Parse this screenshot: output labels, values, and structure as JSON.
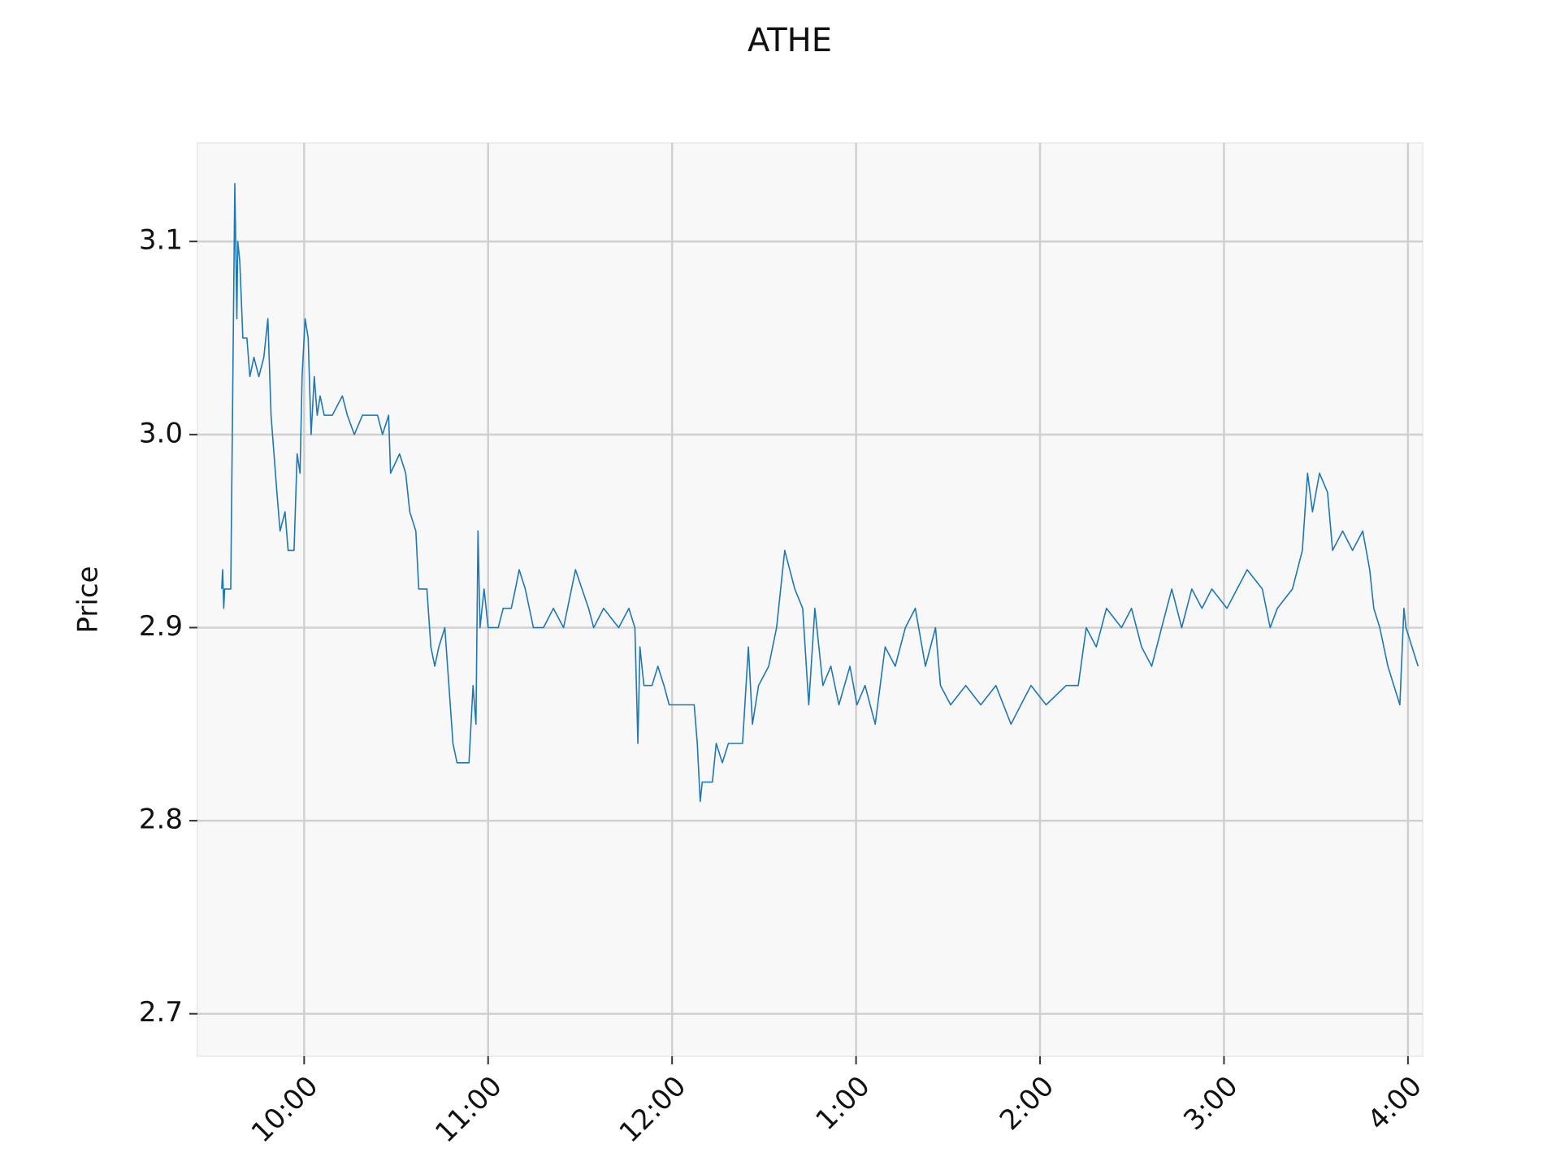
{
  "chart_data": {
    "type": "line",
    "title": "ATHE",
    "y_label": "Price",
    "color": "#1f77b4",
    "grid": true,
    "x": [
      9.552,
      9.557,
      9.563,
      9.568,
      9.601,
      9.623,
      9.634,
      9.639,
      9.65,
      9.667,
      9.689,
      9.705,
      9.727,
      9.754,
      9.781,
      9.803,
      9.82,
      9.836,
      9.852,
      9.869,
      9.896,
      9.913,
      9.945,
      9.962,
      9.978,
      9.989,
      10.005,
      10.022,
      10.038,
      10.055,
      10.071,
      10.087,
      10.109,
      10.153,
      10.208,
      10.235,
      10.273,
      10.317,
      10.399,
      10.426,
      10.459,
      10.47,
      10.519,
      10.552,
      10.574,
      10.607,
      10.623,
      10.667,
      10.689,
      10.71,
      10.732,
      10.765,
      10.787,
      10.809,
      10.831,
      10.896,
      10.918,
      10.934,
      10.945,
      10.956,
      10.978,
      11.0,
      11.055,
      11.082,
      11.126,
      11.148,
      11.169,
      11.202,
      11.246,
      11.301,
      11.355,
      11.41,
      11.475,
      11.546,
      11.574,
      11.628,
      11.71,
      11.765,
      11.798,
      11.814,
      11.825,
      11.847,
      11.891,
      11.923,
      11.956,
      11.984,
      12.12,
      12.137,
      12.153,
      12.164,
      12.219,
      12.24,
      12.273,
      12.306,
      12.35,
      12.383,
      12.415,
      12.437,
      12.47,
      12.525,
      12.568,
      12.612,
      12.667,
      12.71,
      12.743,
      12.776,
      12.82,
      12.863,
      12.907,
      12.967,
      13.005,
      13.049,
      13.104,
      13.158,
      13.213,
      13.268,
      13.322,
      13.377,
      13.432,
      13.459,
      13.514,
      13.596,
      13.678,
      13.76,
      13.842,
      13.896,
      13.951,
      14.033,
      14.142,
      14.208,
      14.251,
      14.306,
      14.361,
      14.443,
      14.497,
      14.552,
      14.607,
      14.661,
      14.716,
      14.77,
      14.825,
      14.88,
      14.934,
      15.016,
      15.126,
      15.208,
      15.251,
      15.29,
      15.372,
      15.426,
      15.454,
      15.481,
      15.519,
      15.563,
      15.59,
      15.645,
      15.699,
      15.754,
      15.792,
      15.814,
      15.847,
      15.891,
      15.923,
      15.956,
      15.978,
      15.989,
      16.055
    ],
    "values": [
      2.92,
      2.93,
      2.91,
      2.92,
      2.92,
      3.13,
      3.06,
      3.1,
      3.09,
      3.05,
      3.05,
      3.03,
      3.04,
      3.03,
      3.04,
      3.06,
      3.01,
      2.99,
      2.97,
      2.95,
      2.96,
      2.94,
      2.94,
      2.99,
      2.98,
      3.03,
      3.06,
      3.05,
      3.0,
      3.03,
      3.01,
      3.02,
      3.01,
      3.01,
      3.02,
      3.01,
      3.0,
      3.01,
      3.01,
      3.0,
      3.01,
      2.98,
      2.99,
      2.98,
      2.96,
      2.95,
      2.92,
      2.92,
      2.89,
      2.88,
      2.89,
      2.9,
      2.87,
      2.84,
      2.83,
      2.83,
      2.87,
      2.85,
      2.95,
      2.9,
      2.92,
      2.9,
      2.9,
      2.91,
      2.91,
      2.92,
      2.93,
      2.92,
      2.9,
      2.9,
      2.91,
      2.9,
      2.93,
      2.91,
      2.9,
      2.91,
      2.9,
      2.91,
      2.9,
      2.84,
      2.89,
      2.87,
      2.87,
      2.88,
      2.87,
      2.86,
      2.86,
      2.84,
      2.81,
      2.82,
      2.82,
      2.84,
      2.83,
      2.84,
      2.84,
      2.84,
      2.89,
      2.85,
      2.87,
      2.88,
      2.9,
      2.94,
      2.92,
      2.91,
      2.86,
      2.91,
      2.87,
      2.88,
      2.86,
      2.88,
      2.86,
      2.87,
      2.85,
      2.89,
      2.88,
      2.9,
      2.91,
      2.88,
      2.9,
      2.87,
      2.86,
      2.87,
      2.86,
      2.87,
      2.85,
      2.86,
      2.87,
      2.86,
      2.87,
      2.87,
      2.9,
      2.89,
      2.91,
      2.9,
      2.91,
      2.89,
      2.88,
      2.9,
      2.92,
      2.9,
      2.92,
      2.91,
      2.92,
      2.91,
      2.93,
      2.92,
      2.9,
      2.91,
      2.92,
      2.94,
      2.98,
      2.96,
      2.98,
      2.97,
      2.94,
      2.95,
      2.94,
      2.95,
      2.93,
      2.91,
      2.9,
      2.88,
      2.87,
      2.86,
      2.91,
      2.9,
      2.88
    ],
    "xlim": [
      9.42,
      16.08
    ],
    "ylim": [
      2.678,
      3.151
    ],
    "xticks": [
      {
        "value": 10,
        "label": "10:00"
      },
      {
        "value": 11,
        "label": "11:00"
      },
      {
        "value": 12,
        "label": "12:00"
      },
      {
        "value": 13,
        "label": "1:00"
      },
      {
        "value": 14,
        "label": "2:00"
      },
      {
        "value": 15,
        "label": "3:00"
      },
      {
        "value": 16,
        "label": "4:00"
      }
    ],
    "yticks": [
      2.7,
      2.8,
      2.9,
      {
        "value": 3.0,
        "label": "3.0"
      },
      3.1
    ]
  }
}
